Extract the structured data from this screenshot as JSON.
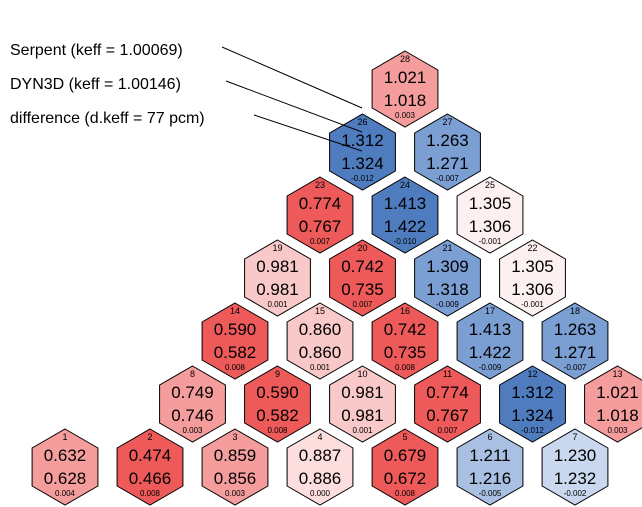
{
  "legend": {
    "serpent": "Serpent (keff = 1.00069)",
    "dyn3d": "DYN3D  (keff = 1.00146)",
    "difference": "difference (d.keff = 77 pcm)"
  },
  "colors": {
    "outline": "#000000",
    "negative_strong": "#4f7cbf",
    "negative_medium": "#7b9ed3",
    "negative_light": "#a9c0e2",
    "negative_faint": "#c9d8ee",
    "neutral": "#fdf0f0",
    "positive_faint": "#fcdede",
    "positive_light": "#f9c8c8",
    "positive_medium": "#f59d9d",
    "positive_strong": "#ee5a5a"
  },
  "assemblies": [
    {
      "id": "1",
      "serpent": "0.632",
      "dyn3d": "0.628",
      "diff": "0.004"
    },
    {
      "id": "2",
      "serpent": "0.474",
      "dyn3d": "0.466",
      "diff": "0.008"
    },
    {
      "id": "3",
      "serpent": "0.859",
      "dyn3d": "0.856",
      "diff": "0.003"
    },
    {
      "id": "4",
      "serpent": "0.887",
      "dyn3d": "0.886",
      "diff": "0.000"
    },
    {
      "id": "5",
      "serpent": "0.679",
      "dyn3d": "0.672",
      "diff": "0.008"
    },
    {
      "id": "6",
      "serpent": "1.211",
      "dyn3d": "1.216",
      "diff": "-0.005"
    },
    {
      "id": "7",
      "serpent": "1.230",
      "dyn3d": "1.232",
      "diff": "-0.002"
    },
    {
      "id": "8",
      "serpent": "0.749",
      "dyn3d": "0.746",
      "diff": "0.003"
    },
    {
      "id": "9",
      "serpent": "0.590",
      "dyn3d": "0.582",
      "diff": "0.008"
    },
    {
      "id": "10",
      "serpent": "0.981",
      "dyn3d": "0.981",
      "diff": "0.001"
    },
    {
      "id": "11",
      "serpent": "0.774",
      "dyn3d": "0.767",
      "diff": "0.007"
    },
    {
      "id": "12",
      "serpent": "1.312",
      "dyn3d": "1.324",
      "diff": "-0.012"
    },
    {
      "id": "13",
      "serpent": "1.021",
      "dyn3d": "1.018",
      "diff": "0.003"
    },
    {
      "id": "14",
      "serpent": "0.590",
      "dyn3d": "0.582",
      "diff": "0.008"
    },
    {
      "id": "15",
      "serpent": "0.860",
      "dyn3d": "0.860",
      "diff": "0.001"
    },
    {
      "id": "16",
      "serpent": "0.742",
      "dyn3d": "0.735",
      "diff": "0.008"
    },
    {
      "id": "17",
      "serpent": "1.413",
      "dyn3d": "1.422",
      "diff": "-0.009"
    },
    {
      "id": "18",
      "serpent": "1.263",
      "dyn3d": "1.271",
      "diff": "-0.007"
    },
    {
      "id": "19",
      "serpent": "0.981",
      "dyn3d": "0.981",
      "diff": "0.001"
    },
    {
      "id": "20",
      "serpent": "0.742",
      "dyn3d": "0.735",
      "diff": "0.007"
    },
    {
      "id": "21",
      "serpent": "1.309",
      "dyn3d": "1.318",
      "diff": "-0.009"
    },
    {
      "id": "22",
      "serpent": "1.305",
      "dyn3d": "1.306",
      "diff": "-0.001"
    },
    {
      "id": "23",
      "serpent": "0.774",
      "dyn3d": "0.767",
      "diff": "0.007"
    },
    {
      "id": "24",
      "serpent": "1.413",
      "dyn3d": "1.422",
      "diff": "-0.010"
    },
    {
      "id": "25",
      "serpent": "1.305",
      "dyn3d": "1.306",
      "diff": "-0.001"
    },
    {
      "id": "26",
      "serpent": "1.312",
      "dyn3d": "1.324",
      "diff": "-0.012"
    },
    {
      "id": "27",
      "serpent": "1.263",
      "dyn3d": "1.271",
      "diff": "-0.007"
    },
    {
      "id": "28",
      "serpent": "1.021",
      "dyn3d": "1.018",
      "diff": "0.003"
    }
  ]
}
